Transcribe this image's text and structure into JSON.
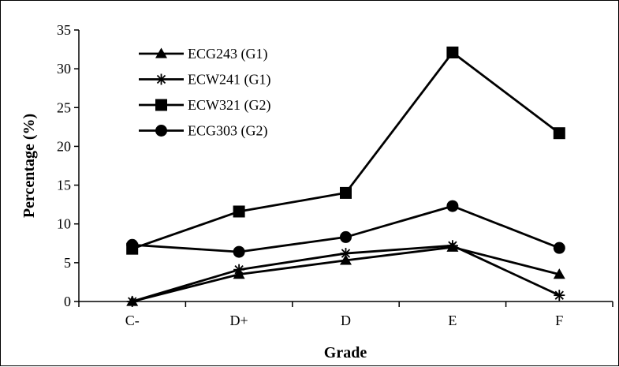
{
  "chart_data": {
    "type": "line",
    "title": "",
    "xlabel": "Grade",
    "ylabel": "Percentage (%)",
    "categories": [
      "C-",
      "D+",
      "D",
      "E",
      "F"
    ],
    "ylim": [
      0,
      35
    ],
    "yticks": [
      0,
      5,
      10,
      15,
      20,
      25,
      30,
      35
    ],
    "grid": false,
    "legend_position": "top-left",
    "series": [
      {
        "name": "ECG243 (G1)",
        "marker": "triangle",
        "values": [
          0,
          3.5,
          5.3,
          7.0,
          3.5
        ]
      },
      {
        "name": "ECW241 (G1)",
        "marker": "asterisk",
        "values": [
          0,
          4.1,
          6.2,
          7.2,
          0.8
        ]
      },
      {
        "name": "ECW321 (G2)",
        "marker": "square",
        "values": [
          6.8,
          11.6,
          14.0,
          32.1,
          21.7
        ]
      },
      {
        "name": "ECG303 (G2)",
        "marker": "circle",
        "values": [
          7.3,
          6.4,
          8.3,
          12.3,
          6.9
        ]
      }
    ],
    "line_color": "#000000"
  }
}
